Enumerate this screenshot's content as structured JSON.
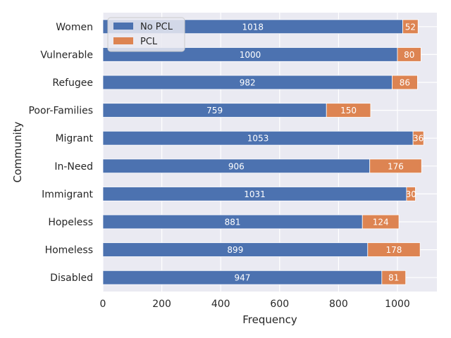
{
  "chart_data": {
    "type": "bar",
    "orientation": "horizontal",
    "stacked": true,
    "title": "",
    "xlabel": "Frequency",
    "ylabel": "Community",
    "xlim": [
      0,
      1134
    ],
    "xticks": [
      0,
      200,
      400,
      600,
      800,
      1000
    ],
    "grid": true,
    "legend_position": "top-left",
    "categories": [
      "Women",
      "Vulnerable",
      "Refugee",
      "Poor-Families",
      "Migrant",
      "In-Need",
      "Immigrant",
      "Hopeless",
      "Homeless",
      "Disabled"
    ],
    "series": [
      {
        "name": "No PCL",
        "color": "#4c72b0",
        "values": [
          1018,
          1000,
          982,
          759,
          1053,
          906,
          1031,
          881,
          899,
          947
        ]
      },
      {
        "name": "PCL",
        "color": "#dd8452",
        "values": [
          52,
          80,
          86,
          150,
          36,
          176,
          30,
          124,
          178,
          81
        ]
      }
    ],
    "plot_background": "#eaeaf2",
    "grid_color": "#ffffff"
  }
}
